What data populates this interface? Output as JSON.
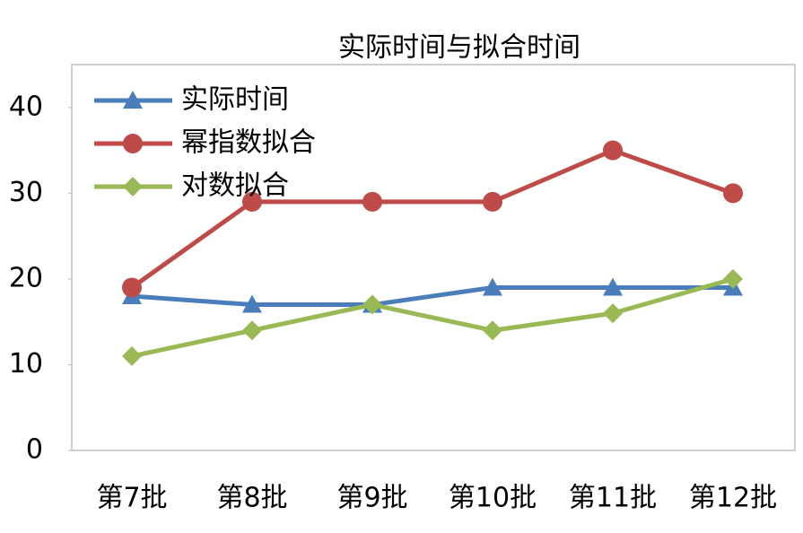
{
  "chart_data": {
    "type": "line",
    "title": "实际时间与拟合时间",
    "categories": [
      "第7批",
      "第8批",
      "第9批",
      "第10批",
      "第11批",
      "第12批"
    ],
    "series": [
      {
        "name": "实际时间",
        "color": "#4a7ebb",
        "marker": "triangle",
        "values": [
          18,
          17,
          17,
          19,
          19,
          19
        ]
      },
      {
        "name": "幂指数拟合",
        "color": "#be4b48",
        "marker": "circle",
        "values": [
          19,
          29,
          29,
          29,
          35,
          30
        ]
      },
      {
        "name": "对数拟合",
        "color": "#98b954",
        "marker": "diamond",
        "values": [
          11,
          14,
          17,
          14,
          16,
          20
        ]
      }
    ],
    "ylim": [
      0,
      45
    ],
    "yticks": [
      0,
      10,
      20,
      30,
      40
    ],
    "grid": false,
    "legend": "upper left"
  }
}
